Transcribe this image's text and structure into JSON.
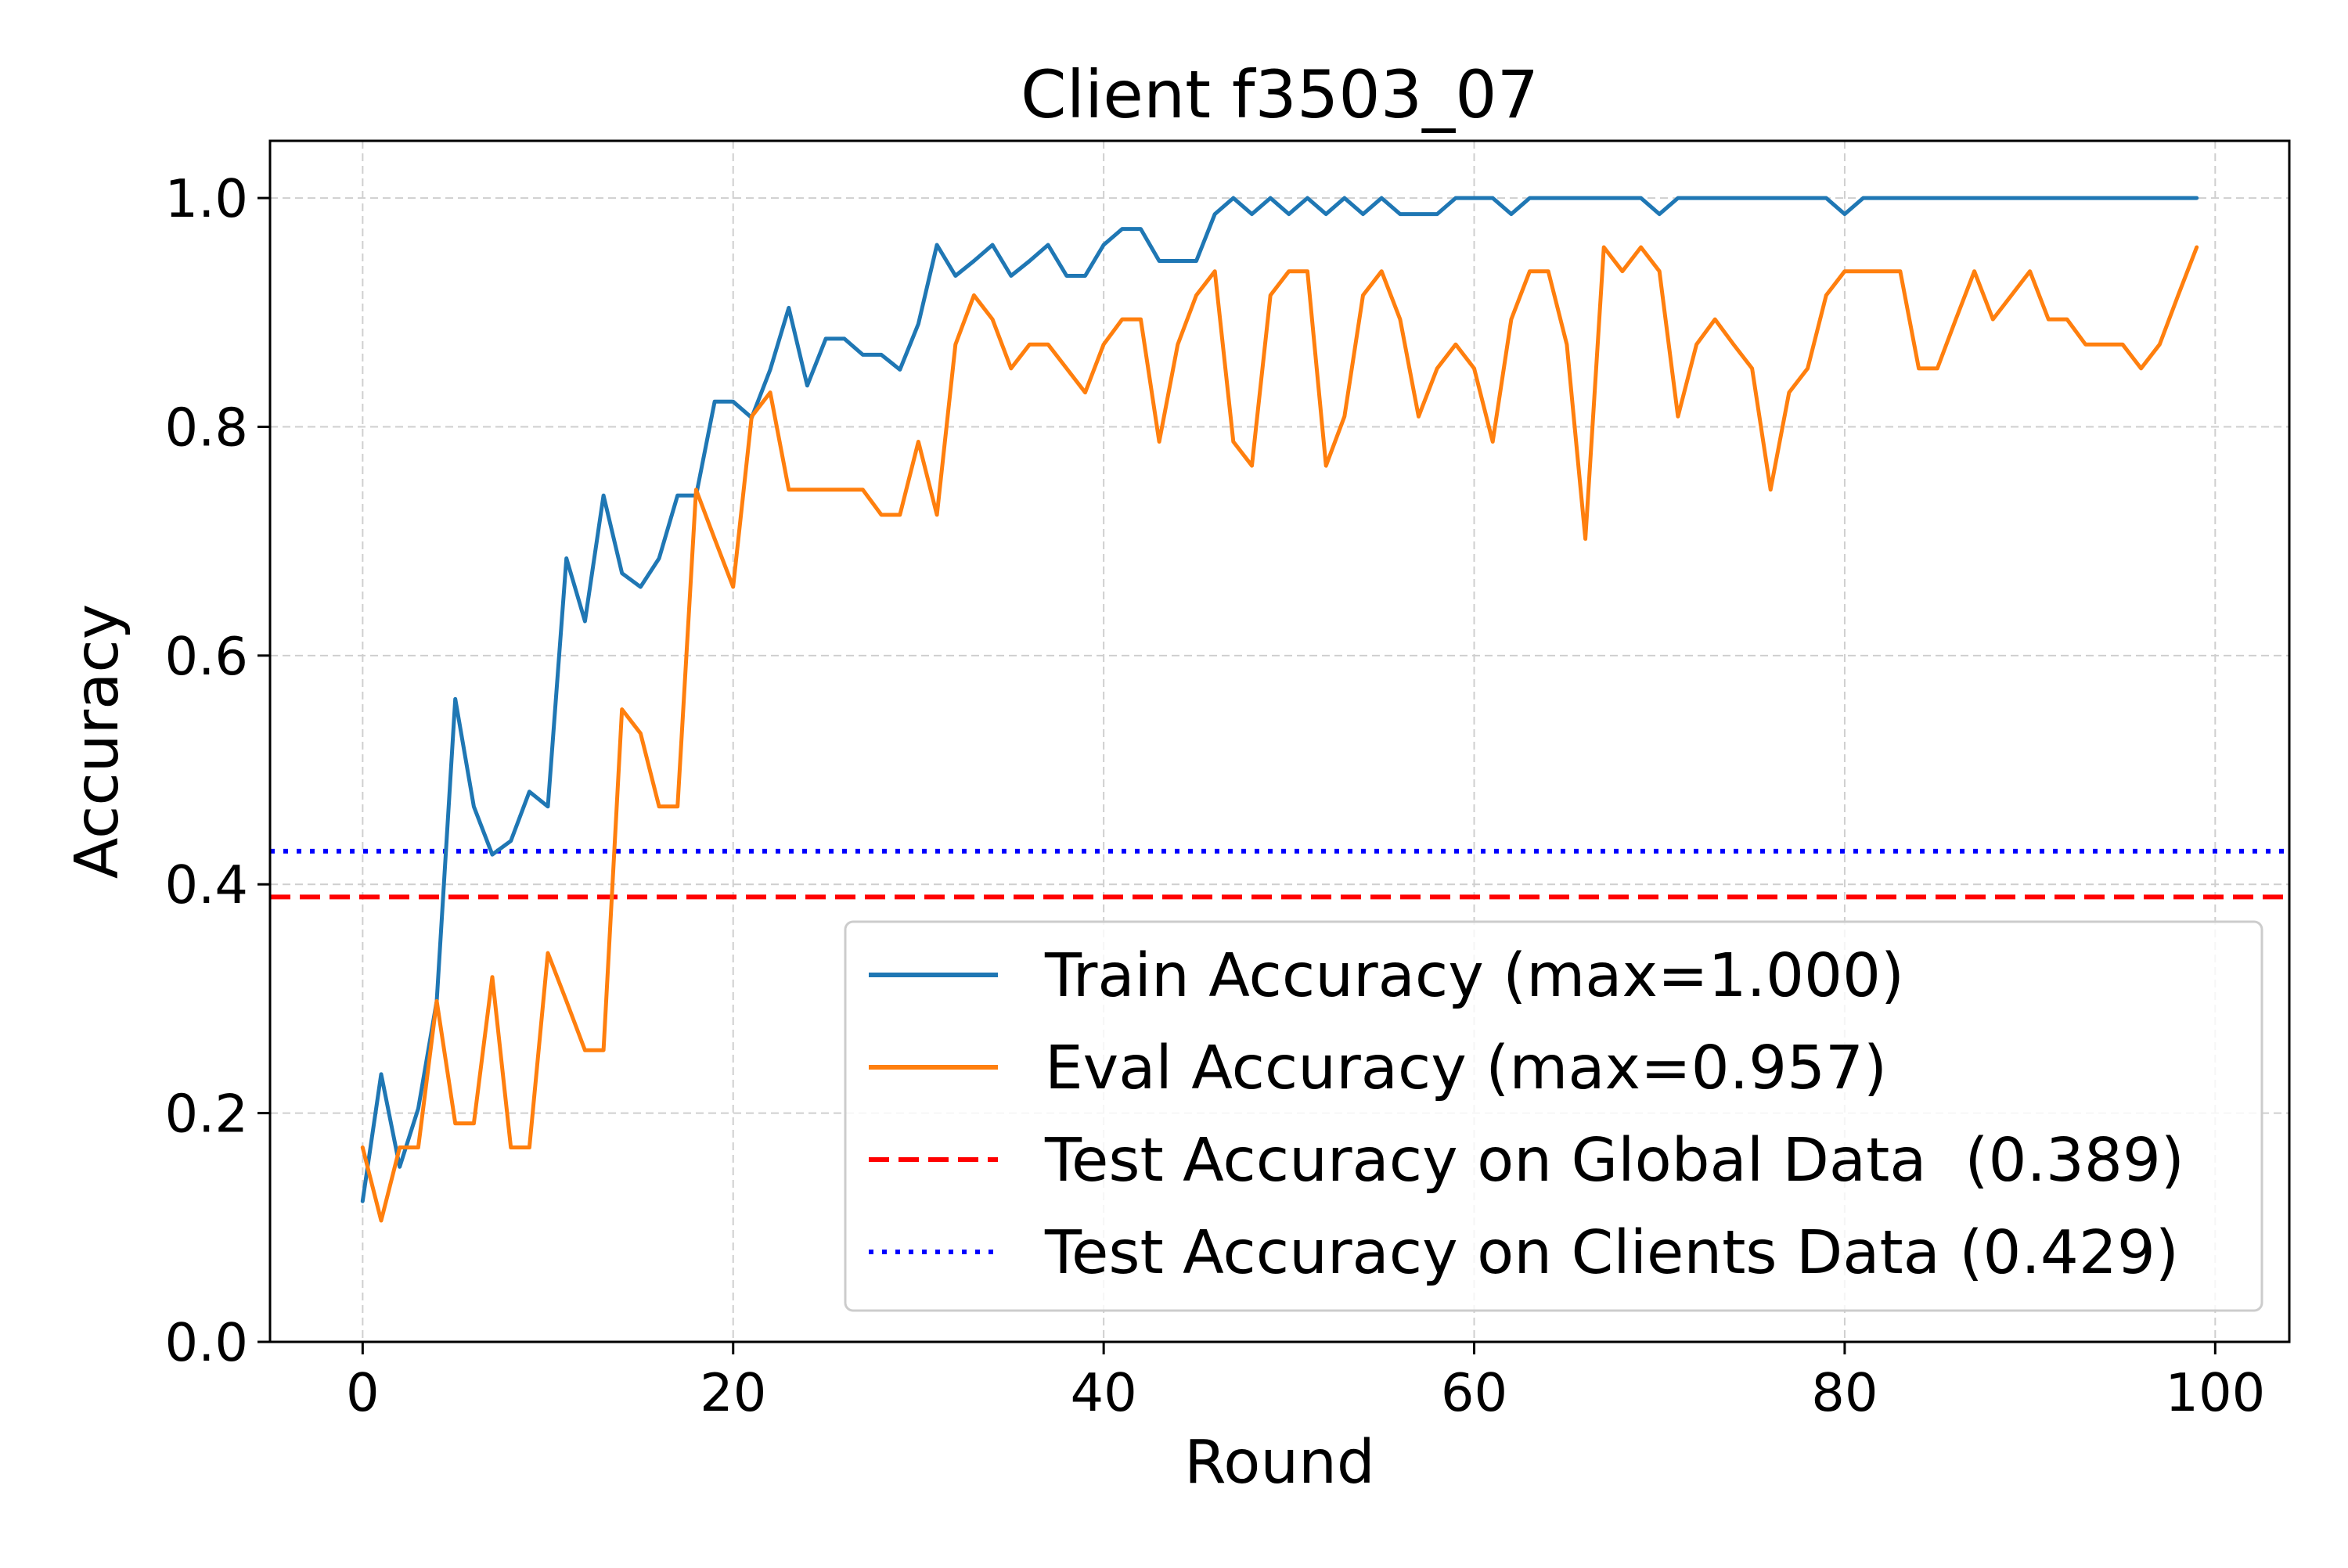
{
  "chart_data": {
    "type": "line",
    "title": "Client f3503_07",
    "xlabel": "Round",
    "ylabel": "Accuracy",
    "xlim": [
      -5,
      104
    ],
    "ylim": [
      0,
      1.05
    ],
    "grid": true,
    "legend_position": "lower-right",
    "x_ticks": [
      0,
      20,
      40,
      60,
      80,
      100
    ],
    "x_tick_labels": [
      "0",
      "20",
      "40",
      "60",
      "80",
      "100"
    ],
    "y_ticks": [
      0.0,
      0.2,
      0.4,
      0.6,
      0.8,
      1.0
    ],
    "y_tick_labels": [
      "0.0",
      "0.2",
      "0.4",
      "0.6",
      "0.8",
      "1.0"
    ],
    "series": [
      {
        "name": "Train Accuracy (max=1.000)",
        "color": "#1f77b4",
        "style": "solid",
        "x": [
          0,
          1,
          2,
          3,
          4,
          5,
          6,
          7,
          8,
          9,
          10,
          11,
          12,
          13,
          14,
          15,
          16,
          17,
          18,
          19,
          20,
          21,
          22,
          23,
          24,
          25,
          26,
          27,
          28,
          29,
          30,
          31,
          32,
          33,
          34,
          35,
          36,
          37,
          38,
          39,
          40,
          41,
          42,
          43,
          44,
          45,
          46,
          47,
          48,
          49,
          50,
          51,
          52,
          53,
          54,
          55,
          56,
          57,
          58,
          59,
          60,
          61,
          62,
          63,
          64,
          65,
          66,
          67,
          68,
          69,
          70,
          71,
          72,
          73,
          74,
          75,
          76,
          77,
          78,
          79,
          80,
          81,
          82,
          83,
          84,
          85,
          86,
          87,
          88,
          89,
          90,
          91,
          92,
          93,
          94,
          95,
          96,
          97,
          98,
          99
        ],
        "values": [
          0.123,
          0.234,
          0.153,
          0.204,
          0.298,
          0.562,
          0.468,
          0.426,
          0.438,
          0.481,
          0.468,
          0.685,
          0.63,
          0.74,
          0.672,
          0.66,
          0.685,
          0.74,
          0.74,
          0.822,
          0.822,
          0.808,
          0.85,
          0.904,
          0.836,
          0.877,
          0.877,
          0.863,
          0.863,
          0.85,
          0.89,
          0.959,
          0.932,
          0.945,
          0.959,
          0.932,
          0.945,
          0.959,
          0.932,
          0.932,
          0.959,
          0.973,
          0.973,
          0.945,
          0.945,
          0.945,
          0.986,
          1.0,
          0.986,
          1.0,
          0.986,
          1.0,
          0.986,
          1.0,
          0.986,
          1.0,
          0.986,
          0.986,
          0.986,
          1.0,
          1.0,
          1.0,
          0.986,
          1.0,
          1.0,
          1.0,
          1.0,
          1.0,
          1.0,
          1.0,
          0.986,
          1.0,
          1.0,
          1.0,
          1.0,
          1.0,
          1.0,
          1.0,
          1.0,
          1.0,
          0.986,
          1.0,
          1.0,
          1.0,
          1.0,
          1.0,
          1.0,
          1.0,
          1.0,
          1.0,
          1.0,
          1.0,
          1.0,
          1.0,
          1.0,
          1.0,
          1.0,
          1.0,
          1.0,
          1.0
        ]
      },
      {
        "name": "Eval Accuracy (max=0.957)",
        "color": "#ff7f0e",
        "style": "solid",
        "x": [
          0,
          1,
          2,
          3,
          4,
          5,
          6,
          7,
          8,
          9,
          10,
          11,
          12,
          13,
          14,
          15,
          16,
          17,
          18,
          19,
          20,
          21,
          22,
          23,
          24,
          25,
          26,
          27,
          28,
          29,
          30,
          31,
          32,
          33,
          34,
          35,
          36,
          37,
          38,
          39,
          40,
          41,
          42,
          43,
          44,
          45,
          46,
          47,
          48,
          49,
          50,
          51,
          52,
          53,
          54,
          55,
          56,
          57,
          58,
          59,
          60,
          61,
          62,
          63,
          64,
          65,
          66,
          67,
          68,
          69,
          70,
          71,
          72,
          73,
          74,
          75,
          76,
          77,
          78,
          79,
          80,
          81,
          82,
          83,
          84,
          85,
          86,
          87,
          88,
          89,
          90,
          91,
          92,
          93,
          94,
          95,
          96,
          97,
          98,
          99
        ],
        "values": [
          0.17,
          0.106,
          0.17,
          0.17,
          0.298,
          0.191,
          0.191,
          0.319,
          0.17,
          0.17,
          0.34,
          0.298,
          0.255,
          0.255,
          0.553,
          0.532,
          0.468,
          0.468,
          0.745,
          0.702,
          0.66,
          0.809,
          0.83,
          0.745,
          0.745,
          0.745,
          0.745,
          0.745,
          0.723,
          0.723,
          0.787,
          0.723,
          0.872,
          0.915,
          0.894,
          0.851,
          0.872,
          0.872,
          0.851,
          0.83,
          0.872,
          0.894,
          0.894,
          0.787,
          0.872,
          0.915,
          0.936,
          0.787,
          0.766,
          0.915,
          0.936,
          0.936,
          0.766,
          0.809,
          0.915,
          0.936,
          0.894,
          0.809,
          0.851,
          0.872,
          0.851,
          0.787,
          0.894,
          0.936,
          0.936,
          0.872,
          0.702,
          0.957,
          0.936,
          0.957,
          0.936,
          0.809,
          0.872,
          0.894,
          0.872,
          0.851,
          0.745,
          0.83,
          0.851,
          0.915,
          0.936,
          0.936,
          0.936,
          0.936,
          0.851,
          0.851,
          0.894,
          0.936,
          0.894,
          0.915,
          0.936,
          0.894,
          0.894,
          0.872,
          0.872,
          0.872,
          0.851,
          0.872,
          0.915,
          0.957
        ]
      },
      {
        "name": "Test Accuracy on Global Data  (0.389)",
        "color": "#ff0000",
        "style": "dashed",
        "constant": 0.389
      },
      {
        "name": "Test Accuracy on Clients Data (0.429)",
        "color": "#0000ff",
        "style": "dotted",
        "constant": 0.429
      }
    ]
  }
}
